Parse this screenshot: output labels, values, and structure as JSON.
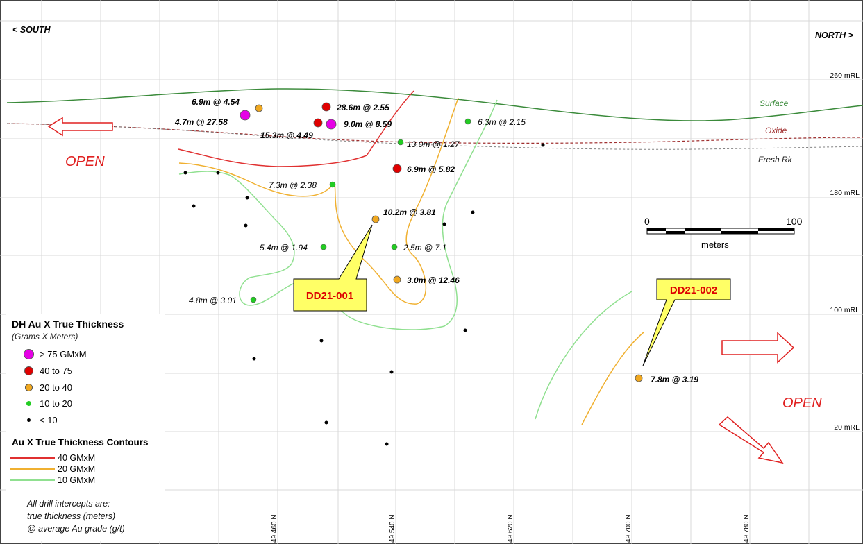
{
  "directions": {
    "south": "< SOUTH",
    "north": "NORTH >"
  },
  "elevations": [
    "260 mRL",
    "180 mRL",
    "100 mRL",
    "20 mRL"
  ],
  "northings": [
    "49,460 N",
    "49,540 N",
    "49,620 N",
    "49,700 N",
    "49,780 N"
  ],
  "surfaces": {
    "surface": "Surface",
    "oxide": "Oxide",
    "fresh": "Fresh Rk"
  },
  "open_labels": {
    "left": "OPEN",
    "right": "OPEN"
  },
  "scale": {
    "zero": "0",
    "max": "100",
    "unit": "meters"
  },
  "callouts": {
    "hole1": "DD21-001",
    "hole2": "DD21-002"
  },
  "intercepts": {
    "i1": "6.9m @ 4.54",
    "i2": "4.7m @ 27.58",
    "i3": "28.6m @ 2.55",
    "i4": "9.0m @ 8.59",
    "i5": "15.3m @ 4.49",
    "i6": "6.3m @ 2.15",
    "i7": "13.0m @ 1.27",
    "i8": "6.9m @ 5.82",
    "i9": "7.3m @ 2.38",
    "i10": "10.2m @ 3.81",
    "i11": "5.4m @ 1.94",
    "i12": "2.5m @ 7.1",
    "i13": "3.0m @ 12.46",
    "i14": "4.8m @ 3.01",
    "i15": "7.8m @ 3.19"
  },
  "legend": {
    "title": "DH Au X True Thickness",
    "subtitle": "(Grams X Meters)",
    "classes": [
      {
        "label": "> 75 GMxM",
        "color": "#e600e6"
      },
      {
        "label": "40  to  75",
        "color": "#e00000"
      },
      {
        "label": "20  to  40",
        "color": "#f0a820"
      },
      {
        "label": "10  to  20",
        "color": "#22cc22"
      },
      {
        "label": "< 10",
        "color": "#000000"
      }
    ],
    "contour_title": "Au X True Thickness Contours",
    "contours": [
      {
        "label": "40 GMxM",
        "color": "#e03030"
      },
      {
        "label": "20 GMxM",
        "color": "#f0b030"
      },
      {
        "label": "10 GMxM",
        "color": "#90e090"
      }
    ],
    "note": [
      "All drill intercepts are:",
      "true thickness (meters)",
      "@ average Au grade (g/t)"
    ]
  },
  "colors": {
    "surface": "#3a8a3a",
    "oxide": "#a03030",
    "fresh": "#808080",
    "open": "#e02020",
    "callout_fill": "#ffff66",
    "callout_text": "#dd0000",
    "grid": "#d8d8d8"
  }
}
